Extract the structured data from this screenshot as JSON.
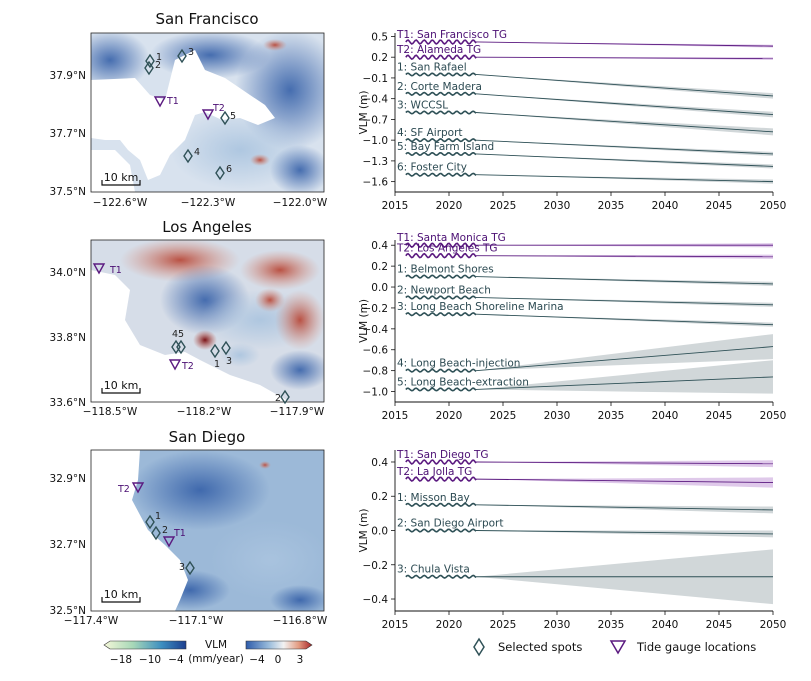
{
  "colors": {
    "gray_series": "#2f5157",
    "purple_series": "#5b1a80",
    "band_gray": "#c9d0d2",
    "band_purple": "#d9bfe6",
    "diamond": "#2f5157",
    "triangle": "#5b1a80"
  },
  "legend": {
    "selected_spots": "Selected spots",
    "tide_gauges": "Tide gauge locations"
  },
  "colorbar": {
    "label": "VLM",
    "unit": "(mm/year)",
    "left_ticks": [
      "−18",
      "−10",
      "−4"
    ],
    "right_ticks": [
      "−4",
      "0",
      "3"
    ]
  },
  "maps": [
    {
      "title": "San Francisco",
      "xticks": [
        "−122.6°W",
        "−122.3°W",
        "−122.0°W"
      ],
      "yticks": [
        "37.9°N",
        "37.7°N",
        "37.5°N"
      ],
      "scale": "10 km",
      "spots": [
        "1",
        "2",
        "3",
        "4",
        "5",
        "6"
      ],
      "gauges": [
        "T1",
        "T2"
      ]
    },
    {
      "title": "Los Angeles",
      "xticks": [
        "−118.5°W",
        "−118.2°W",
        "−117.9°W"
      ],
      "yticks": [
        "34.0°N",
        "33.8°N",
        "33.6°N"
      ],
      "scale": "10 km",
      "spots": [
        "45",
        "1",
        "3",
        "2"
      ],
      "gauges": [
        "T1",
        "T2"
      ]
    },
    {
      "title": "San Diego",
      "xticks": [
        "−117.4°W",
        "−117.1°W",
        "−116.8°W"
      ],
      "yticks": [
        "32.9°N",
        "32.7°N",
        "32.5°N"
      ],
      "scale": "10 km",
      "spots": [
        "1",
        "2",
        "3"
      ],
      "gauges": [
        "T1",
        "T2"
      ]
    }
  ],
  "chart_data": [
    {
      "type": "line",
      "xlabel": "",
      "ylabel": "VLM (m)",
      "xlim": [
        2015,
        2050
      ],
      "ylim": [
        -1.75,
        0.55
      ],
      "xticks": [
        2015,
        2020,
        2025,
        2030,
        2035,
        2040,
        2045,
        2050
      ],
      "yticks": [
        "0.5",
        "0.2",
        "−0.1",
        "−0.4",
        "−0.7",
        "−1.0",
        "−1.3",
        "−1.6"
      ],
      "observed_range": [
        2016,
        2022.5
      ],
      "series": [
        {
          "name": "T1: San Francisco TG",
          "kind": "gauge",
          "values": [
            0.42,
            0.36
          ],
          "band": 0.02
        },
        {
          "name": "T2: Alameda TG",
          "kind": "gauge",
          "values": [
            0.2,
            0.18
          ],
          "band": 0.02
        },
        {
          "name": "1: San Rafael",
          "kind": "spot",
          "values": [
            -0.05,
            -0.36
          ],
          "band": 0.04
        },
        {
          "name": "2: Corte Madera",
          "kind": "spot",
          "values": [
            -0.33,
            -0.63
          ],
          "band": 0.04
        },
        {
          "name": "3: WCCSL",
          "kind": "spot",
          "values": [
            -0.6,
            -0.88
          ],
          "band": 0.05
        },
        {
          "name": "4: SF Airport",
          "kind": "spot",
          "values": [
            -1.0,
            -1.2
          ],
          "band": 0.03
        },
        {
          "name": "5: Bay Farm Island",
          "kind": "spot",
          "values": [
            -1.2,
            -1.38
          ],
          "band": 0.03
        },
        {
          "name": "6: Foster City",
          "kind": "spot",
          "values": [
            -1.5,
            -1.6
          ],
          "band": 0.03
        }
      ]
    },
    {
      "type": "line",
      "xlabel": "",
      "ylabel": "VLM (m)",
      "xlim": [
        2015,
        2050
      ],
      "ylim": [
        -1.1,
        0.45
      ],
      "xticks": [
        2015,
        2020,
        2025,
        2030,
        2035,
        2040,
        2045,
        2050
      ],
      "yticks": [
        "0.4",
        "0.2",
        "0.0",
        "−0.2",
        "−0.4",
        "−0.6",
        "−0.8",
        "−1.0"
      ],
      "observed_range": [
        2016,
        2022.5
      ],
      "series": [
        {
          "name": "T1: Santa Monica TG",
          "kind": "gauge",
          "values": [
            0.4,
            0.4
          ],
          "band": 0.02
        },
        {
          "name": "T2: Los Angeles TG",
          "kind": "gauge",
          "values": [
            0.3,
            0.29
          ],
          "band": 0.02
        },
        {
          "name": "1: Belmont Shores",
          "kind": "spot",
          "values": [
            0.1,
            0.03
          ],
          "band": 0.02
        },
        {
          "name": "2: Newport Beach",
          "kind": "spot",
          "values": [
            -0.1,
            -0.17
          ],
          "band": 0.02
        },
        {
          "name": "3: Long Beach Shoreline Marina",
          "kind": "spot",
          "values": [
            -0.26,
            -0.36
          ],
          "band": 0.02
        },
        {
          "name": "4: Long Beach-injection",
          "kind": "spot",
          "values": [
            -0.8,
            -0.57
          ],
          "band": 0.12
        },
        {
          "name": "5: Long Beach-extraction",
          "kind": "spot",
          "values": [
            -0.98,
            -0.86
          ],
          "band": 0.16
        }
      ]
    },
    {
      "type": "line",
      "xlabel": "",
      "ylabel": "VLM (m)",
      "xlim": [
        2015,
        2050
      ],
      "ylim": [
        -0.47,
        0.47
      ],
      "xticks": [
        2015,
        2020,
        2025,
        2030,
        2035,
        2040,
        2045,
        2050
      ],
      "yticks": [
        "0.4",
        "0.2",
        "0.0",
        "−0.2",
        "−0.4"
      ],
      "observed_range": [
        2016,
        2022.5
      ],
      "series": [
        {
          "name": "T1: San Diego TG",
          "kind": "gauge",
          "values": [
            0.4,
            0.39
          ],
          "band": 0.02
        },
        {
          "name": "T2: La Jolla TG",
          "kind": "gauge",
          "values": [
            0.3,
            0.28
          ],
          "band": 0.03
        },
        {
          "name": "1: Misson Bay",
          "kind": "spot",
          "values": [
            0.15,
            0.12
          ],
          "band": 0.02
        },
        {
          "name": "2: San Diego Airport",
          "kind": "spot",
          "values": [
            0.0,
            -0.02
          ],
          "band": 0.02
        },
        {
          "name": "3: Chula Vista",
          "kind": "spot",
          "values": [
            -0.27,
            -0.27
          ],
          "band": 0.16
        }
      ]
    }
  ]
}
